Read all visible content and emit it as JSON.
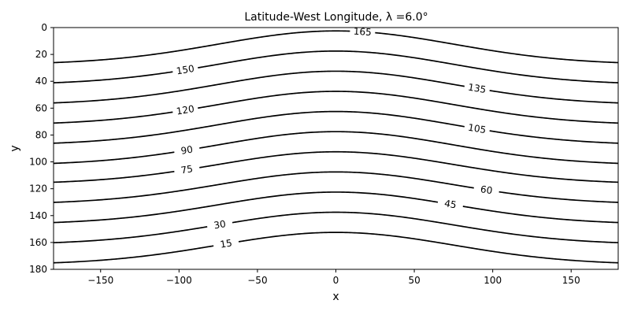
{
  "chart_data": {
    "type": "contour",
    "title": "Latitude-West Longitude, λ =6.0°",
    "xlabel": "x",
    "ylabel": "y",
    "xlim": [
      -180,
      180
    ],
    "ylim": [
      180,
      0
    ],
    "y_inverted": true,
    "grid": false,
    "x_ticks": [
      -150,
      -100,
      -50,
      0,
      50,
      100,
      150
    ],
    "x_tick_labels": [
      "−150",
      "−100",
      "−50",
      "0",
      "50",
      "100",
      "150"
    ],
    "y_ticks": [
      0,
      20,
      40,
      60,
      80,
      100,
      120,
      140,
      160,
      180
    ],
    "y_tick_labels": [
      "0",
      "20",
      "40",
      "60",
      "80",
      "100",
      "120",
      "140",
      "160",
      "180"
    ],
    "levels": [
      15,
      30,
      45,
      60,
      75,
      90,
      105,
      120,
      135,
      150,
      165
    ],
    "contours": [
      {
        "level": 165,
        "y_at_edge": 27.5,
        "y_at_center": 2.5
      },
      {
        "level": 150,
        "y_at_edge": 42.5,
        "y_at_center": 17.5
      },
      {
        "level": 135,
        "y_at_edge": 57.5,
        "y_at_center": 32.5
      },
      {
        "level": 120,
        "y_at_edge": 72.5,
        "y_at_center": 47.5
      },
      {
        "level": 105,
        "y_at_edge": 87.5,
        "y_at_center": 62.5
      },
      {
        "level": 90,
        "y_at_edge": 102.5,
        "y_at_center": 77.5
      },
      {
        "level": 75,
        "y_at_edge": 116.5,
        "y_at_center": 92.5
      },
      {
        "level": 60,
        "y_at_edge": 131.5,
        "y_at_center": 107.5
      },
      {
        "level": 45,
        "y_at_edge": 146.5,
        "y_at_center": 122.5
      },
      {
        "level": 30,
        "y_at_edge": 161.5,
        "y_at_center": 137.5
      },
      {
        "level": 15,
        "y_at_edge": 176.5,
        "y_at_center": 152.5
      }
    ],
    "contour_labels": [
      {
        "text": "165",
        "x": 17
      },
      {
        "text": "150",
        "x": -96
      },
      {
        "text": "135",
        "x": 90
      },
      {
        "text": "120",
        "x": -96
      },
      {
        "text": "105",
        "x": 90
      },
      {
        "text": "90",
        "x": -95
      },
      {
        "text": "75",
        "x": -95
      },
      {
        "text": "60",
        "x": 96
      },
      {
        "text": "45",
        "x": 73
      },
      {
        "text": "30",
        "x": -74
      },
      {
        "text": "15",
        "x": -70
      }
    ],
    "line_color": "#000000"
  }
}
